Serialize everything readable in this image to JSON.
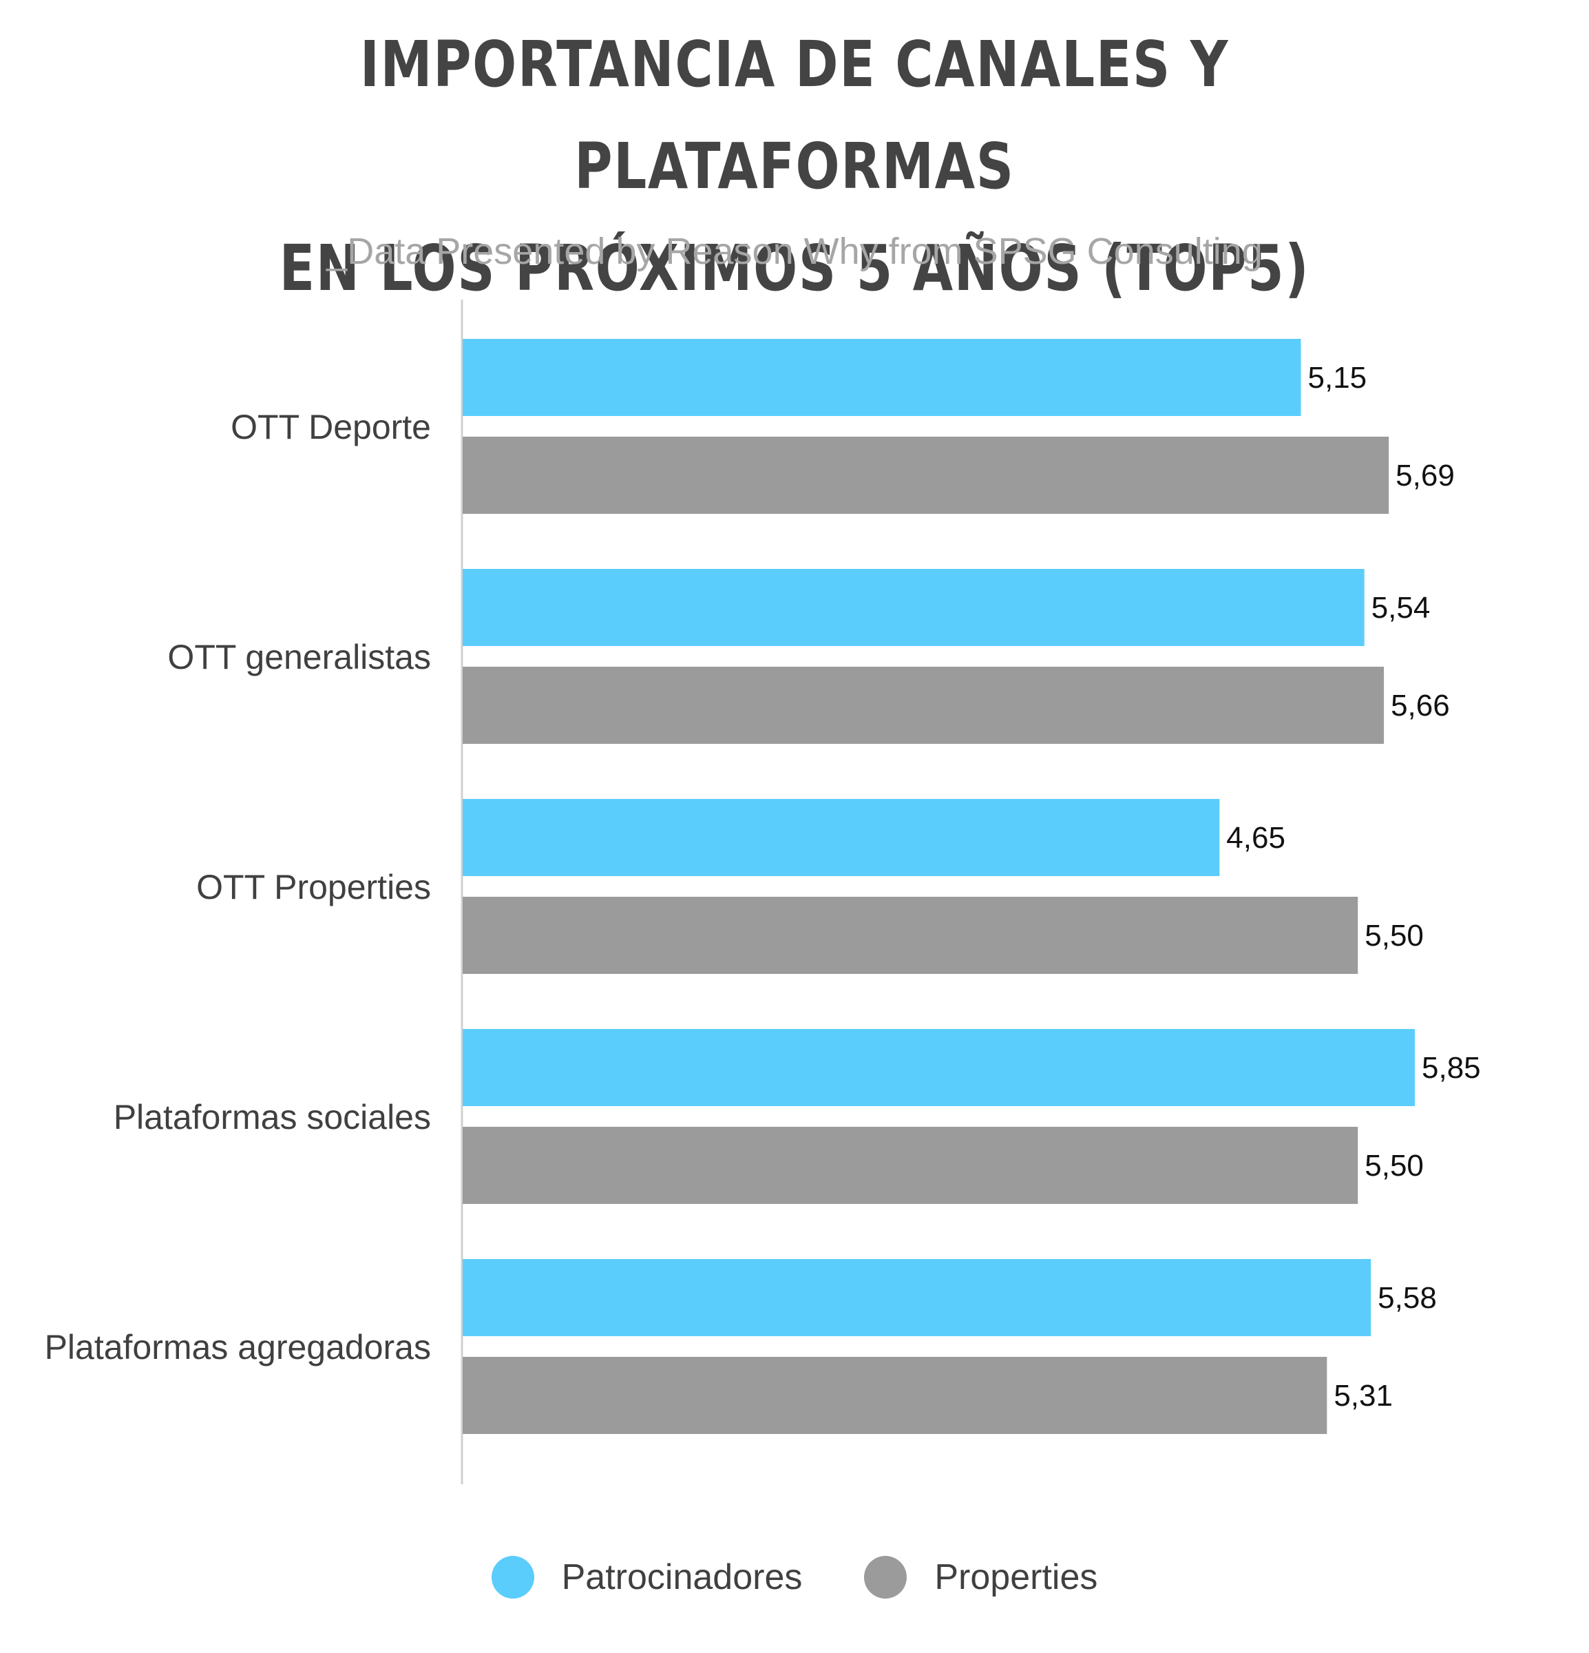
{
  "header": {
    "title_line1": "IMPORTANCIA DE CANALES Y PLATAFORMAS",
    "title_line2": "EN LOS PRÓXIMOS 5 AÑOS (TOP5)",
    "subtitle": "_Data Presented by Reason Why from SPSG Consulting"
  },
  "chart_data": {
    "type": "bar",
    "orientation": "horizontal",
    "title": "IMPORTANCIA DE CANALES Y PLATAFORMAS EN LOS PRÓXIMOS 5 AÑOS (TOP5)",
    "subtitle": "_Data Presented by Reason Why from SPSG Consulting",
    "categories": [
      "OTT Deporte",
      "OTT generalistas",
      "OTT Properties",
      "Plataformas sociales",
      "Plataformas agregadoras"
    ],
    "series": [
      {
        "name": "Patrocinadores",
        "color": "#5bcdfc",
        "values": [
          5.15,
          5.54,
          4.65,
          5.85,
          5.58
        ],
        "labels": [
          "5,15",
          "5,54",
          "4,65",
          "5,85",
          "5,58"
        ]
      },
      {
        "name": "Properties",
        "color": "#9b9b9b",
        "values": [
          5.69,
          5.66,
          5.5,
          5.5,
          5.31
        ],
        "labels": [
          "5,69",
          "5,66",
          "5,50",
          "5,50",
          "5,31"
        ]
      }
    ],
    "xlim": [
      0,
      6.5
    ],
    "grid": false,
    "legend_position": "bottom-center"
  }
}
